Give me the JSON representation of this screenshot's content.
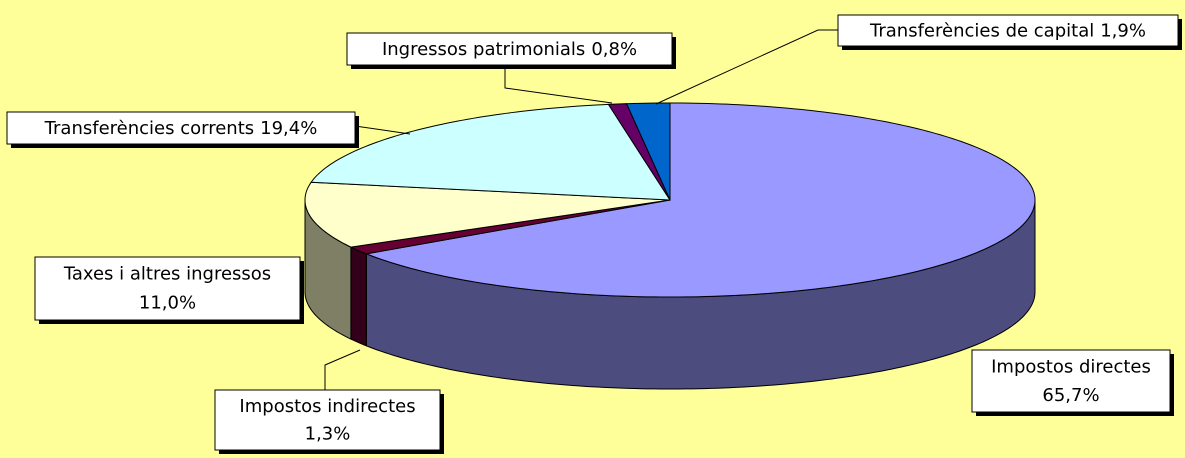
{
  "chart_data": {
    "type": "pie3d",
    "categories": [
      "Impostos directes",
      "Impostos indirectes",
      "Taxes i altres ingressos",
      "Transferències corrents",
      "Ingressos patrimonials",
      "Transferències de capital"
    ],
    "values": [
      65.7,
      1.3,
      11.0,
      19.4,
      0.8,
      1.9
    ],
    "value_labels": [
      "65,7%",
      "1,3%",
      "11,0%",
      "19,4%",
      "0,8%",
      "1,9%"
    ],
    "colors": [
      "#9999ff",
      "#660033",
      "#ffffcc",
      "#ccffff",
      "#660066",
      "#0066cc"
    ]
  }
}
